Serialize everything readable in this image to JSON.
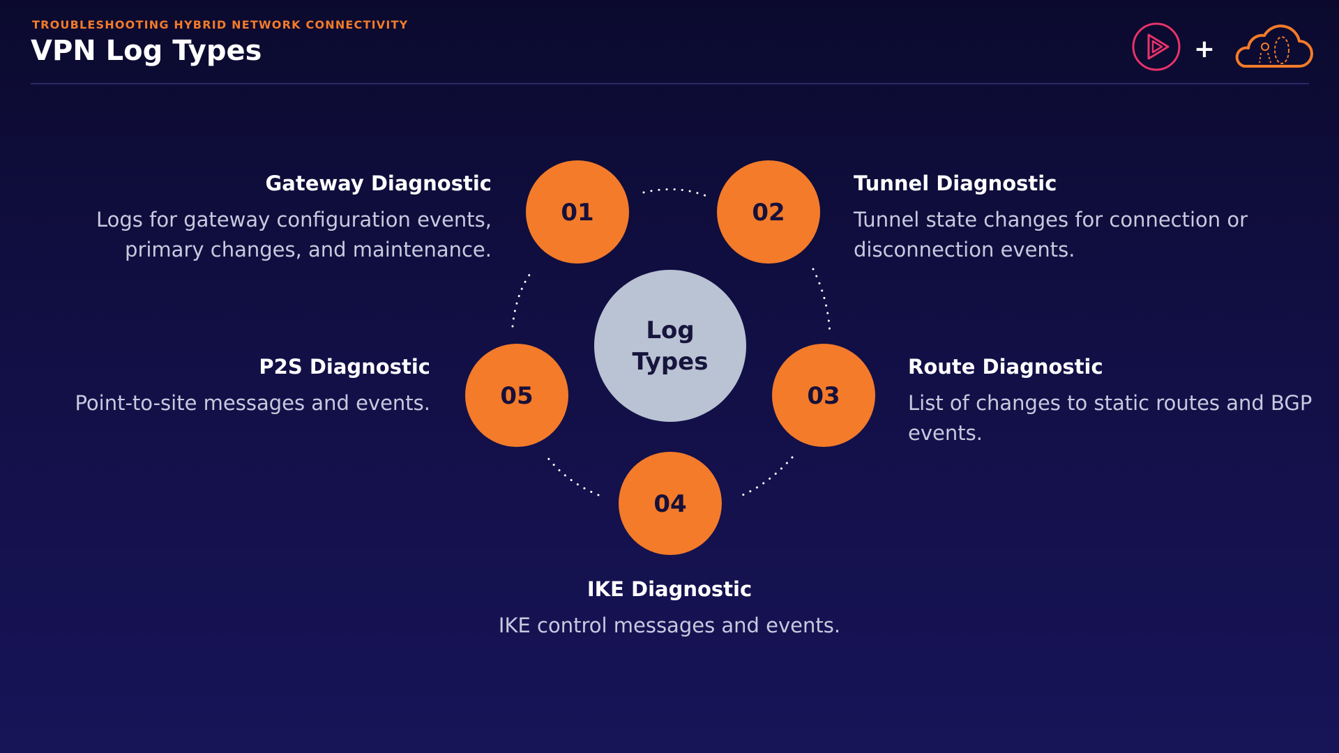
{
  "header": {
    "eyebrow": "TROUBLESHOOTING HYBRID NETWORK CONNECTIVITY",
    "title": "VPN Log Types"
  },
  "logos": {
    "left_icon": "pluralsight-play-icon",
    "plus": "+",
    "right_icon": "cloud-icon"
  },
  "colors": {
    "accent": "#f37b2a",
    "center_node": "#b9c3d3",
    "background": "#120f45"
  },
  "diagram": {
    "center": {
      "line1": "Log",
      "line2": "Types"
    },
    "nodes": [
      {
        "number": "01",
        "title": "Gateway Diagnostic",
        "desc": [
          "Logs for gateway configuration events,",
          "primary changes, and maintenance."
        ]
      },
      {
        "number": "02",
        "title": "Tunnel Diagnostic",
        "desc": [
          "Tunnel state changes for connection or",
          "disconnection events."
        ]
      },
      {
        "number": "03",
        "title": "Route Diagnostic",
        "desc": [
          "List of changes to static routes and BGP",
          "events."
        ]
      },
      {
        "number": "04",
        "title": "IKE Diagnostic",
        "desc": [
          "IKE control messages and events."
        ]
      },
      {
        "number": "05",
        "title": "P2S Diagnostic",
        "desc": [
          "Point-to-site messages and events."
        ]
      }
    ]
  }
}
